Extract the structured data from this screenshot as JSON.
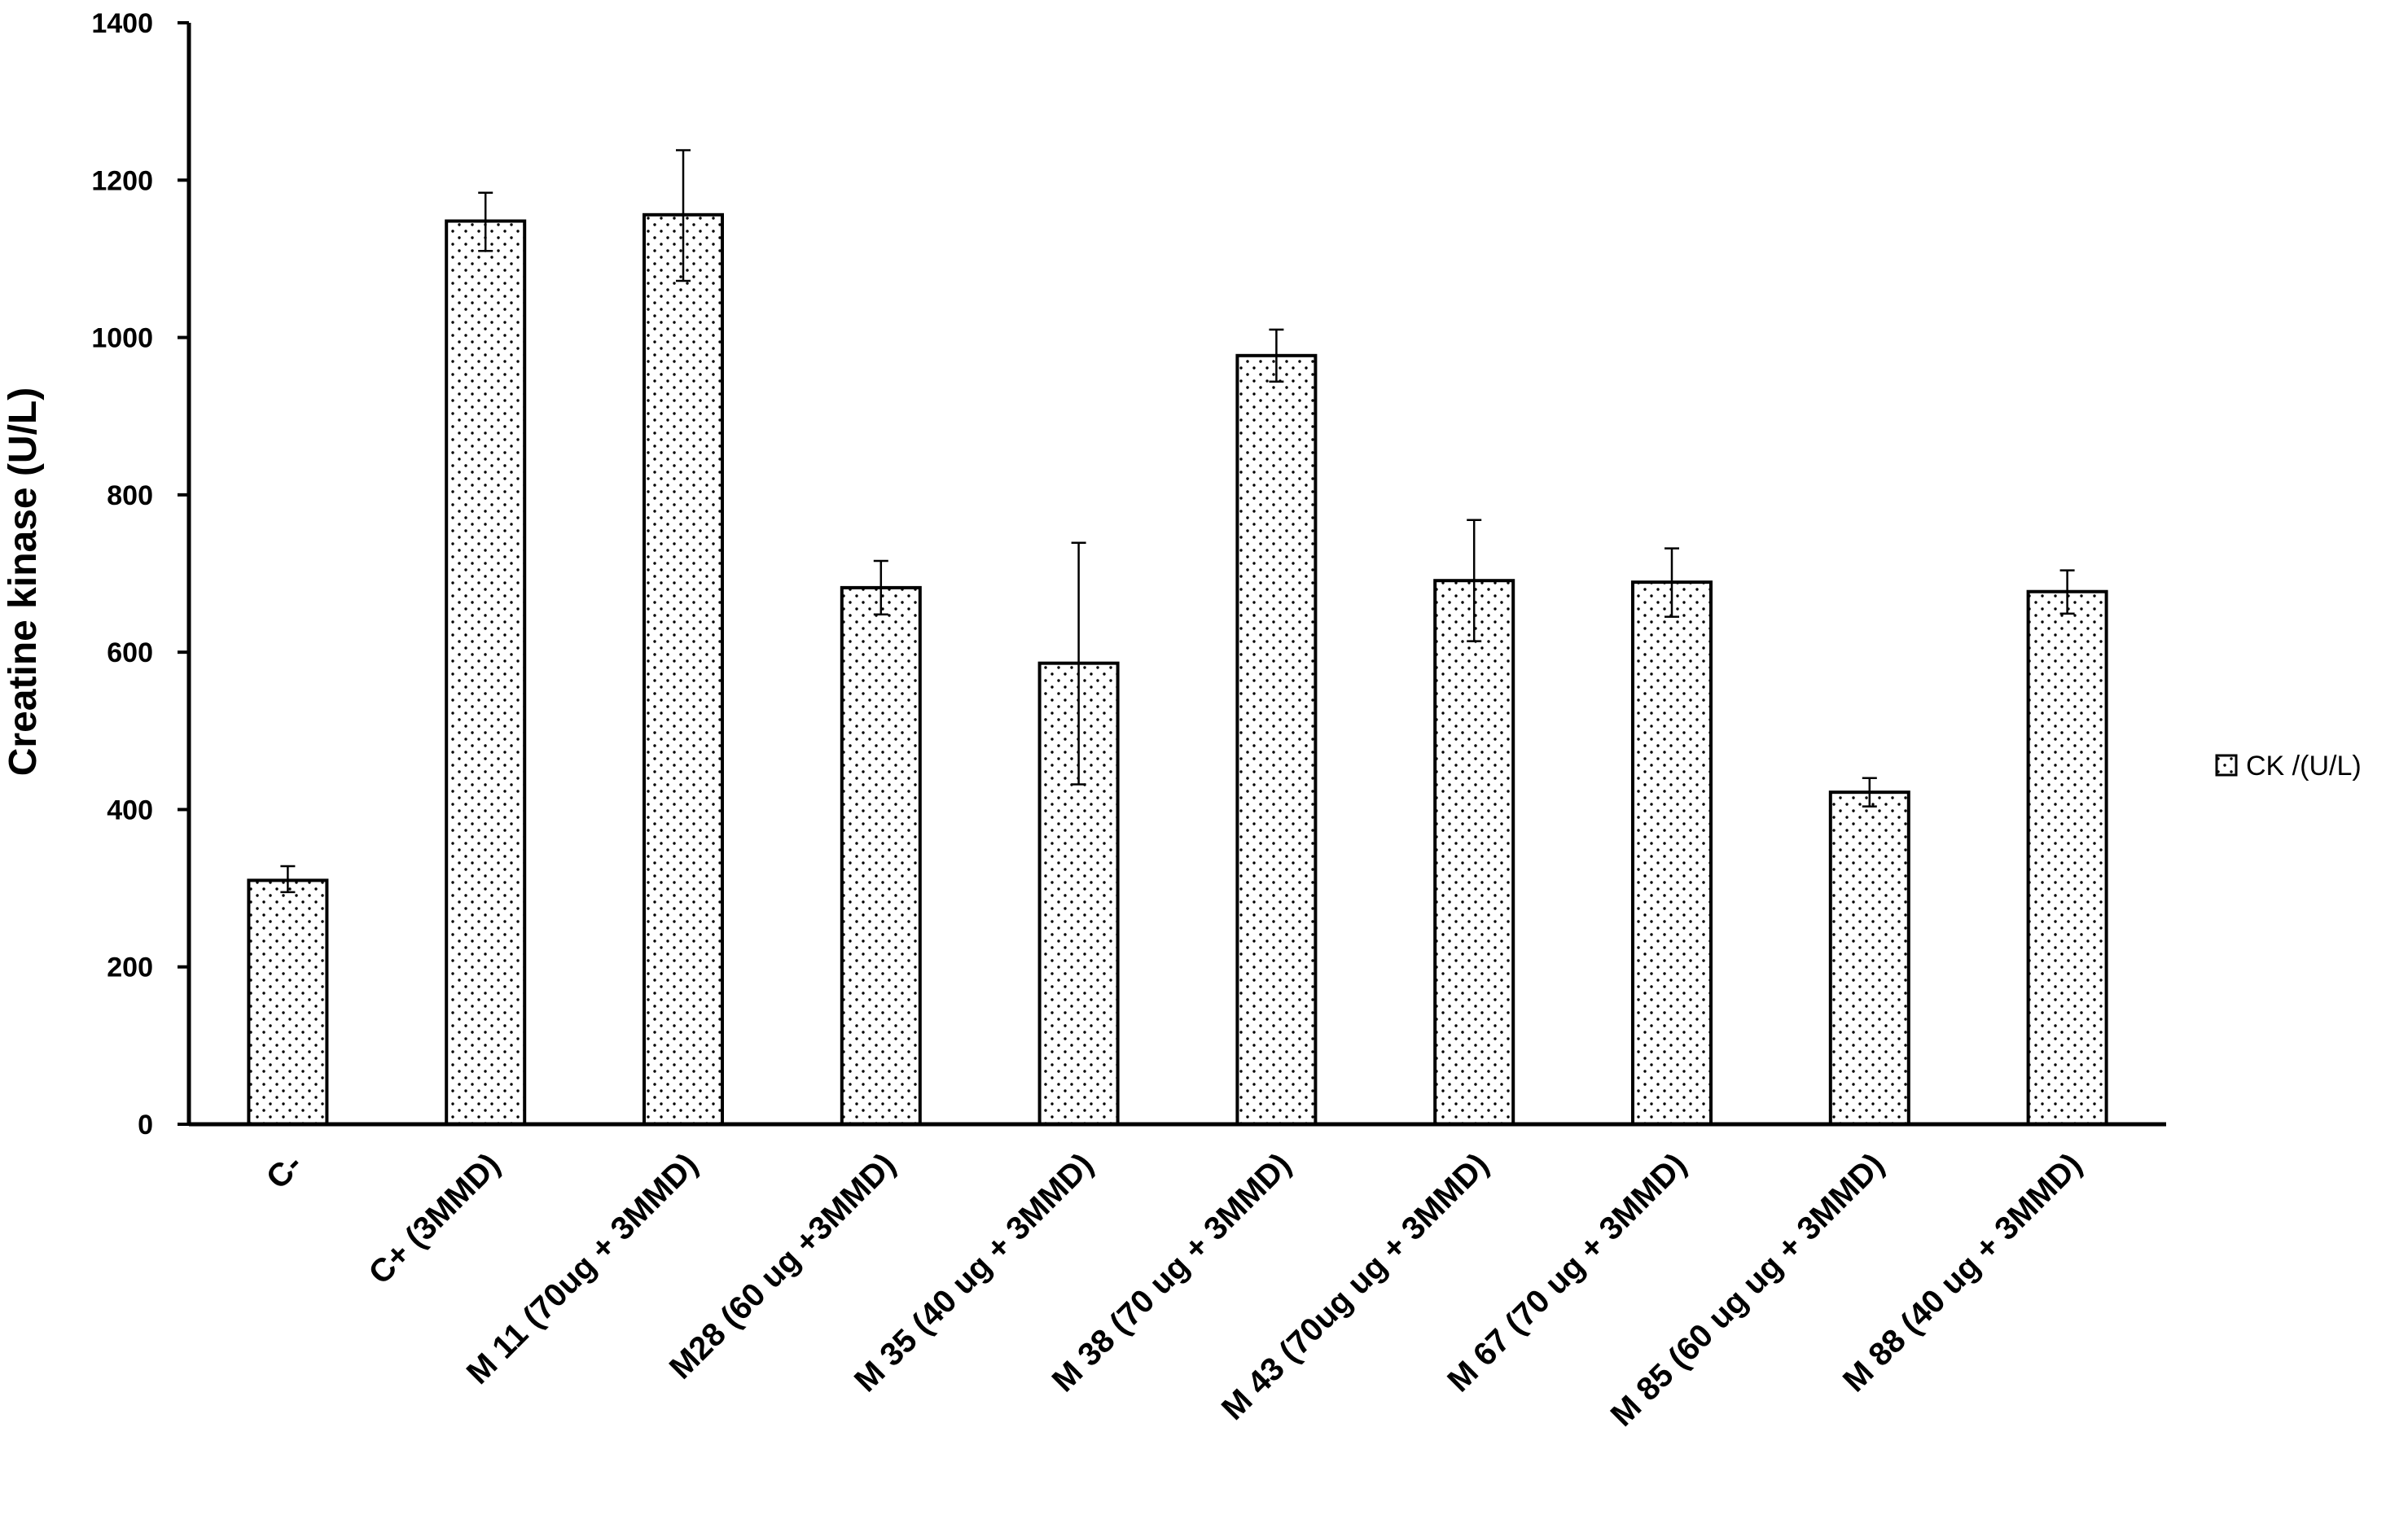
{
  "chart_data": {
    "type": "bar",
    "categories": [
      "C-",
      "C+ (3MMD)",
      "M 11 (70ug + 3MMD)",
      "M28 (60 ug +3MMD)",
      "M 35 (40 ug + 3MMD)",
      "M 38 (70 ug + 3MMD)",
      "M 43 (70ug ug + 3MMD)",
      "M 67 (70 ug + 3MMD)",
      "M 85 (60 ug ug + 3MMD)",
      "M 88 (40 ug + 3MMD)"
    ],
    "series": [
      {
        "name": "CK /(U/L)",
        "values": [
          310,
          1148,
          1156,
          682,
          586,
          977,
          691,
          689,
          422,
          677
        ],
        "error_upper": [
          328,
          1184,
          1238,
          716,
          739,
          1010,
          768,
          732,
          440,
          704
        ],
        "error_lower": [
          295,
          1110,
          1072,
          648,
          432,
          944,
          614,
          645,
          404,
          649
        ]
      }
    ],
    "xlabel": "",
    "ylabel": "Creatine kinase (U/L)",
    "ylim": [
      0,
      1400
    ],
    "yticks": [
      "0",
      "200",
      "400",
      "600",
      "800",
      "1000",
      "1200",
      "1400"
    ],
    "grid": false,
    "legend_position": "right",
    "bar_fill": "dotted",
    "colors": {
      "bar_fill": "#ffffff",
      "bar_dots": "#000000",
      "bar_stroke": "#000000",
      "axis": "#000000"
    }
  }
}
